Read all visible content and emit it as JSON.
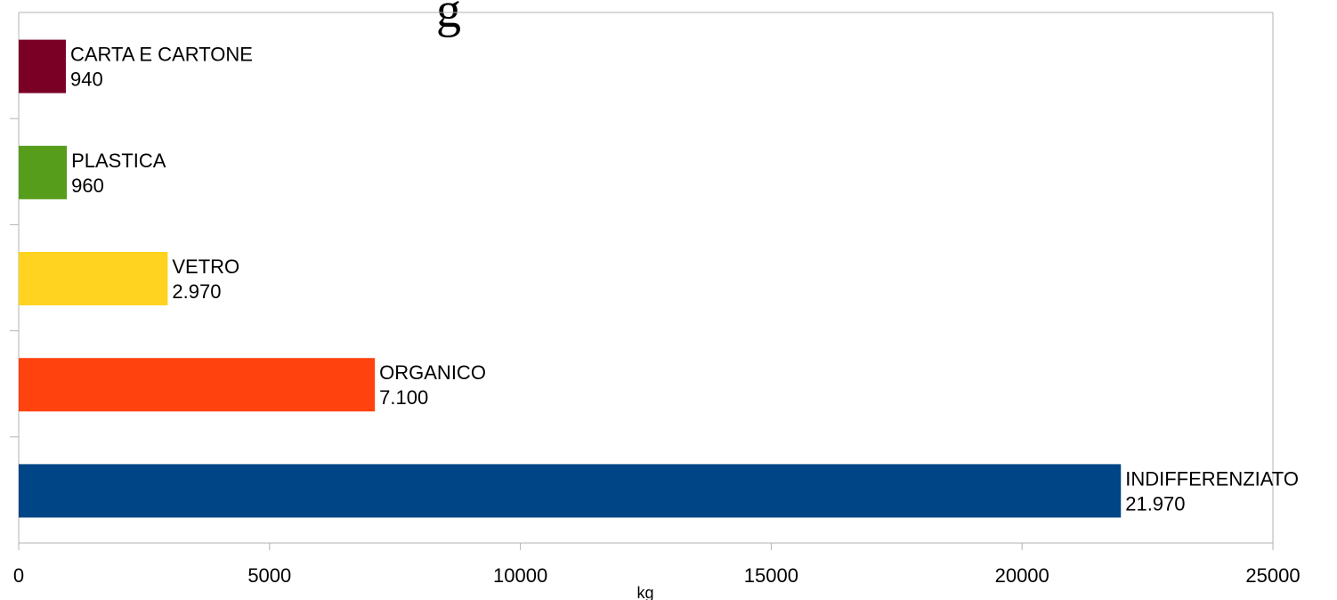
{
  "chart_data": {
    "type": "bar",
    "orientation": "horizontal",
    "title_fragment": "g",
    "categories": [
      "CARTA E CARTONE",
      "PLASTICA",
      "VETRO",
      "ORGANICO",
      "INDIFFERENZIATO"
    ],
    "values": [
      940,
      960,
      2970,
      7100,
      21970
    ],
    "value_labels": [
      "940",
      "960",
      "2.970",
      "7.100",
      "21.970"
    ],
    "colors": [
      "#7b0026",
      "#579d1c",
      "#ffd320",
      "#ff420e",
      "#004586"
    ],
    "xlabel": "kg",
    "xlim": [
      0,
      25000
    ],
    "xticks": [
      0,
      5000,
      10000,
      15000,
      20000,
      25000
    ],
    "grid": false,
    "legend": "none"
  }
}
